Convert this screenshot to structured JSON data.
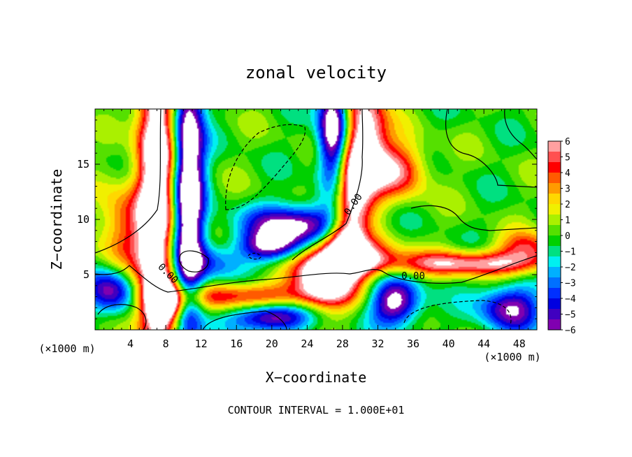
{
  "chart_data": {
    "type": "heatmap",
    "title": "zonal velocity",
    "xlabel": "X−coordinate",
    "ylabel": "Z−coordinate",
    "x_unit_label": "(×1000 m)",
    "y_unit_label": "(×1000 m)",
    "footer": "CONTOUR INTERVAL = 1.000E+01",
    "xlim": [
      0,
      50
    ],
    "ylim": [
      0,
      20
    ],
    "x_ticks": [
      4,
      8,
      12,
      16,
      20,
      24,
      28,
      32,
      36,
      40,
      44,
      48
    ],
    "y_ticks": [
      5,
      10,
      15
    ],
    "colorbar": {
      "range": [
        -6,
        6
      ],
      "ticks": [
        "6",
        "5",
        "4",
        "3",
        "2",
        "1",
        "0",
        "−1",
        "−2",
        "−3",
        "−4",
        "−5",
        "−6"
      ],
      "colors": [
        "#ffa0a0",
        "#ff5050",
        "#ff0000",
        "#ff5a00",
        "#ff9b00",
        "#ffd700",
        "#f0f000",
        "#aaf000",
        "#55e000",
        "#00d000",
        "#00e080",
        "#00f0f0",
        "#00b0ff",
        "#0070ff",
        "#0030ff",
        "#0000e0",
        "#4000c0",
        "#8000b0"
      ]
    },
    "contour_labels": [
      {
        "text": "0.00",
        "x": 29.5,
        "y": 11.2,
        "rotate": -55
      },
      {
        "text": "0.00",
        "x": 8.0,
        "y": 4.9,
        "rotate": 45
      },
      {
        "text": "0.00",
        "x": 36.0,
        "y": 4.6,
        "rotate": 0
      }
    ],
    "field_blobs": [
      {
        "x": 7.0,
        "y": 13.0,
        "sx": 1.6,
        "sy": 14.0,
        "a": 9.0
      },
      {
        "x": 10.5,
        "y": 13.0,
        "sx": 1.3,
        "sy": 11.0,
        "a": -9.0
      },
      {
        "x": 3.0,
        "y": 9.0,
        "sx": 2.0,
        "sy": 3.0,
        "a": 4.0
      },
      {
        "x": 30.5,
        "y": 17.0,
        "sx": 1.8,
        "sy": 4.0,
        "a": 8.0
      },
      {
        "x": 34.5,
        "y": 14.5,
        "sx": 2.2,
        "sy": 1.8,
        "a": 5.0
      },
      {
        "x": 29.0,
        "y": 12.0,
        "sx": 1.4,
        "sy": 3.0,
        "a": 6.0
      },
      {
        "x": 27.0,
        "y": 18.0,
        "sx": 1.2,
        "sy": 3.5,
        "a": -9.0
      },
      {
        "x": 23.0,
        "y": 9.5,
        "sx": 4.0,
        "sy": 1.3,
        "a": -7.0
      },
      {
        "x": 20.0,
        "y": 7.5,
        "sx": 2.5,
        "sy": 1.0,
        "a": -6.0
      },
      {
        "x": 26.0,
        "y": 5.0,
        "sx": 2.5,
        "sy": 2.0,
        "a": 9.0
      },
      {
        "x": 30.0,
        "y": 6.5,
        "sx": 3.0,
        "sy": 1.2,
        "a": 6.0
      },
      {
        "x": 17.0,
        "y": 3.0,
        "sx": 6.0,
        "sy": 0.9,
        "a": 5.0
      },
      {
        "x": 8.0,
        "y": 2.5,
        "sx": 1.5,
        "sy": 1.3,
        "a": 8.0
      },
      {
        "x": 43.0,
        "y": 6.0,
        "sx": 7.0,
        "sy": 0.8,
        "a": 6.0
      },
      {
        "x": 49.0,
        "y": 7.5,
        "sx": 2.5,
        "sy": 1.0,
        "a": 4.0
      },
      {
        "x": 20.0,
        "y": 1.2,
        "sx": 3.0,
        "sy": 1.0,
        "a": -7.0
      },
      {
        "x": 34.0,
        "y": 2.5,
        "sx": 2.0,
        "sy": 1.5,
        "a": -7.0
      },
      {
        "x": 47.0,
        "y": 2.0,
        "sx": 2.5,
        "sy": 1.5,
        "a": -6.0
      },
      {
        "x": 2.0,
        "y": 3.5,
        "sx": 2.0,
        "sy": 1.5,
        "a": -6.0
      },
      {
        "x": 13.0,
        "y": 6.0,
        "sx": 2.0,
        "sy": 1.2,
        "a": -3.0
      },
      {
        "x": 28.0,
        "y": 8.0,
        "sx": 1.5,
        "sy": 1.5,
        "a": 5.0
      }
    ],
    "grid": false,
    "legend": "colorbar-right"
  }
}
